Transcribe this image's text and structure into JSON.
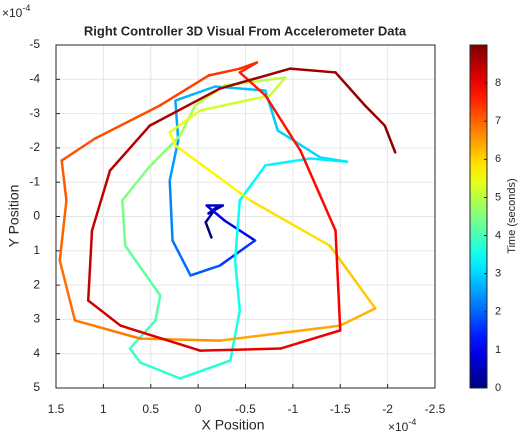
{
  "chart_data": {
    "type": "line",
    "title": "Right Controller 3D Visual From Accelerometer Data",
    "xlabel": "X Position",
    "ylabel": "Y Position",
    "exponent_base": "×10",
    "x_exponent": "-4",
    "y_exponent": "-4",
    "xlim": [
      -2.5,
      1.5
    ],
    "xdir": "reverse",
    "xticks": [
      1.5,
      1,
      0.5,
      0,
      -0.5,
      -1,
      -1.5,
      -2,
      -2.5
    ],
    "ylim": [
      -5,
      5
    ],
    "ydir": "reverse",
    "yticks": [
      -5,
      -4,
      -3,
      -2,
      -1,
      0,
      1,
      2,
      3,
      4,
      5
    ],
    "grid": true,
    "colormap": "jet",
    "colorbar": {
      "label": "Time (seconds)",
      "clim": [
        0,
        9
      ],
      "ticks": [
        0,
        1,
        2,
        3,
        4,
        5,
        6,
        7,
        8
      ]
    },
    "series": [
      {
        "x": [
          -0.14,
          -0.08,
          -0.19,
          -0.11,
          -0.26,
          -0.09,
          -0.28,
          -0.6,
          -0.23,
          0.08,
          0.27,
          0.3,
          0.21,
          0.24,
          -0.18,
          -0.71,
          -0.84,
          -1.29,
          -1.57,
          -1.18,
          -0.71,
          -0.44,
          -0.39,
          -0.44,
          -0.34,
          0.19,
          0.61,
          0.72,
          0.45,
          0.4,
          0.77,
          0.8,
          0.53,
          0.19,
          0.03,
          -0.28,
          -0.92,
          -0.76,
          -0.02,
          0.3,
          0.24,
          -0.55,
          -1.39,
          -1.87,
          -1.5,
          -0.23,
          0.61,
          1.3,
          1.46,
          1.39,
          1.44,
          1.09,
          0.4,
          -0.11,
          -0.44,
          -0.62,
          -0.44,
          -0.71,
          -1.08,
          -1.45,
          -1.5,
          -0.87,
          -0.02,
          0.82,
          1.16,
          1.12,
          0.93,
          0.51,
          -0.23,
          -0.97,
          -1.45,
          -1.76,
          -1.97,
          -2.08
        ],
        "y": [
          0.61,
          0.17,
          -0.26,
          -0.09,
          -0.32,
          -0.32,
          0.12,
          0.7,
          1.43,
          1.72,
          0.7,
          -1.05,
          -2.22,
          -3.38,
          -3.79,
          -3.67,
          -2.51,
          -1.72,
          -1.6,
          -1.69,
          -1.49,
          -0.47,
          1.28,
          2.74,
          4.2,
          4.72,
          4.26,
          3.85,
          3.03,
          2.3,
          0.85,
          -0.47,
          -1.4,
          -2.36,
          -3.24,
          -3.82,
          -4.05,
          -3.53,
          -3.09,
          -2.45,
          -2.07,
          -0.47,
          0.85,
          2.68,
          3.18,
          3.62,
          3.56,
          3.03,
          1.28,
          -0.47,
          -1.63,
          -2.27,
          -3.24,
          -4.11,
          -4.31,
          -4.49,
          -4.2,
          -3.53,
          -1.92,
          0.41,
          3.32,
          3.85,
          3.91,
          3.18,
          2.45,
          0.41,
          -1.34,
          -2.65,
          -3.73,
          -4.31,
          -4.2,
          -3.24,
          -2.65,
          -1.87
        ],
        "t": [
          0,
          0.2,
          0.4,
          0.5,
          0.6,
          0.8,
          1,
          1.6,
          1.9,
          2.1,
          2.3,
          2.5,
          2.6,
          2.7,
          2.8,
          2.9,
          3,
          3.1,
          3.2,
          3.3,
          3.35,
          3.4,
          3.5,
          3.6,
          3.7,
          3.8,
          3.9,
          4,
          4.1,
          4.2,
          4.4,
          4.5,
          4.6,
          4.8,
          4.9,
          5,
          5.1,
          5.2,
          5.4,
          5.6,
          5.7,
          5.9,
          6.1,
          6.3,
          6.4,
          6.6,
          6.8,
          6.9,
          7,
          7.1,
          7.15,
          7.2,
          7.3,
          7.4,
          7.5,
          7.55,
          7.6,
          7.7,
          7.8,
          7.9,
          8,
          8.1,
          8.2,
          8.3,
          8.35,
          8.4,
          8.5,
          8.6,
          8.7,
          8.75,
          8.8,
          8.85,
          8.9,
          8.95
        ]
      }
    ]
  }
}
